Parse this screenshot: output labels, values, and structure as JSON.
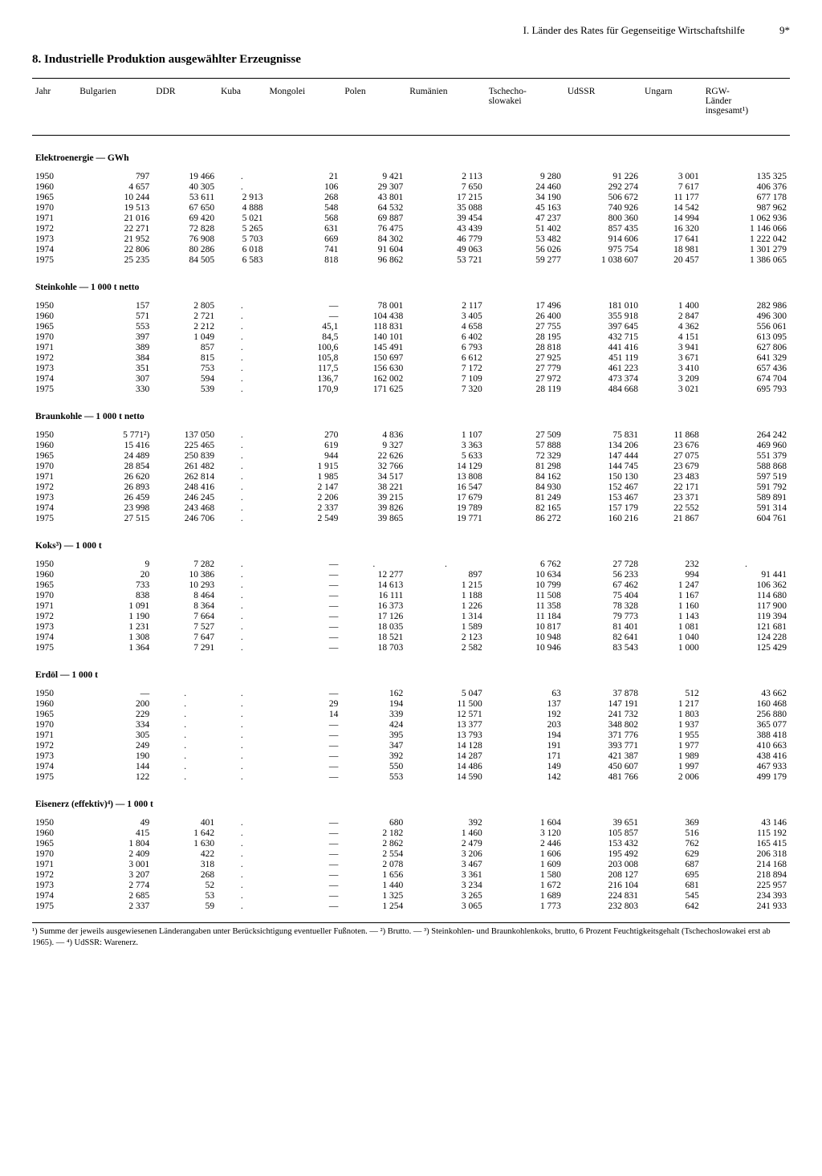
{
  "header": {
    "chapter": "I. Länder des Rates für Gegenseitige Wirtschaftshilfe",
    "pageNumber": "9*"
  },
  "title": "8. Industrielle Produktion ausgewählter Erzeugnisse",
  "columns": [
    "Jahr",
    "Bulgarien",
    "DDR",
    "Kuba",
    "Mongolei",
    "Polen",
    "Rumänien",
    "Tschecho-\nslowakei",
    "UdSSR",
    "Ungarn",
    "RGW-\nLänder\ninsgesamt¹)"
  ],
  "sections": [
    {
      "title": "Elektroenergie — GWh",
      "rows": [
        [
          "1950",
          "797",
          "19 466",
          ".",
          "21",
          "9 421",
          "2 113",
          "9 280",
          "91 226",
          "3 001",
          "135 325"
        ],
        [
          "1960",
          "4 657",
          "40 305",
          ".",
          "106",
          "29 307",
          "7 650",
          "24 460",
          "292 274",
          "7 617",
          "406 376"
        ],
        [
          "1965",
          "10 244",
          "53 611",
          "2 913",
          "268",
          "43 801",
          "17 215",
          "34 190",
          "506 672",
          "11 177",
          "677 178"
        ],
        [
          "1970",
          "19 513",
          "67 650",
          "4 888",
          "548",
          "64 532",
          "35 088",
          "45 163",
          "740 926",
          "14 542",
          "987 962"
        ],
        [
          "1971",
          "21 016",
          "69 420",
          "5 021",
          "568",
          "69 887",
          "39 454",
          "47 237",
          "800 360",
          "14 994",
          "1 062 936"
        ],
        [
          "1972",
          "22 271",
          "72 828",
          "5 265",
          "631",
          "76 475",
          "43 439",
          "51 402",
          "857 435",
          "16 320",
          "1 146 066"
        ],
        [
          "1973",
          "21 952",
          "76 908",
          "5 703",
          "669",
          "84 302",
          "46 779",
          "53 482",
          "914 606",
          "17 641",
          "1 222 042"
        ],
        [
          "1974",
          "22 806",
          "80 286",
          "6 018",
          "741",
          "91 604",
          "49 063",
          "56 026",
          "975 754",
          "18 981",
          "1 301 279"
        ],
        [
          "1975",
          "25 235",
          "84 505",
          "6 583",
          "818",
          "96 862",
          "53 721",
          "59 277",
          "1 038 607",
          "20 457",
          "1 386 065"
        ]
      ]
    },
    {
      "title": "Steinkohle — 1 000 t netto",
      "rows": [
        [
          "1950",
          "157",
          "2 805",
          ".",
          "—",
          "78 001",
          "2 117",
          "17 496",
          "181 010",
          "1 400",
          "282 986"
        ],
        [
          "1960",
          "571",
          "2 721",
          ".",
          "—",
          "104 438",
          "3 405",
          "26 400",
          "355 918",
          "2 847",
          "496 300"
        ],
        [
          "1965",
          "553",
          "2 212",
          ".",
          "45,1",
          "118 831",
          "4 658",
          "27 755",
          "397 645",
          "4 362",
          "556 061"
        ],
        [
          "1970",
          "397",
          "1 049",
          ".",
          "84,5",
          "140 101",
          "6 402",
          "28 195",
          "432 715",
          "4 151",
          "613 095"
        ],
        [
          "1971",
          "389",
          "857",
          ".",
          "100,6",
          "145 491",
          "6 793",
          "28 818",
          "441 416",
          "3 941",
          "627 806"
        ],
        [
          "1972",
          "384",
          "815",
          ".",
          "105,8",
          "150 697",
          "6 612",
          "27 925",
          "451 119",
          "3 671",
          "641 329"
        ],
        [
          "1973",
          "351",
          "753",
          ".",
          "117,5",
          "156 630",
          "7 172",
          "27 779",
          "461 223",
          "3 410",
          "657 436"
        ],
        [
          "1974",
          "307",
          "594",
          ".",
          "136,7",
          "162 002",
          "7 109",
          "27 972",
          "473 374",
          "3 209",
          "674 704"
        ],
        [
          "1975",
          "330",
          "539",
          ".",
          "170,9",
          "171 625",
          "7 320",
          "28 119",
          "484 668",
          "3 021",
          "695 793"
        ]
      ]
    },
    {
      "title": "Braunkohle — 1 000 t netto",
      "rows": [
        [
          "1950",
          "5 771²)",
          "137 050",
          ".",
          "270",
          "4 836",
          "1 107",
          "27 509",
          "75 831",
          "11 868",
          "264 242"
        ],
        [
          "1960",
          "15 416",
          "225 465",
          ".",
          "619",
          "9 327",
          "3 363",
          "57 888",
          "134 206",
          "23 676",
          "469 960"
        ],
        [
          "1965",
          "24 489",
          "250 839",
          ".",
          "944",
          "22 626",
          "5 633",
          "72 329",
          "147 444",
          "27 075",
          "551 379"
        ],
        [
          "1970",
          "28 854",
          "261 482",
          ".",
          "1 915",
          "32 766",
          "14 129",
          "81 298",
          "144 745",
          "23 679",
          "588 868"
        ],
        [
          "1971",
          "26 620",
          "262 814",
          ".",
          "1 985",
          "34 517",
          "13 808",
          "84 162",
          "150 130",
          "23 483",
          "597 519"
        ],
        [
          "1972",
          "26 893",
          "248 416",
          ".",
          "2 147",
          "38 221",
          "16 547",
          "84 930",
          "152 467",
          "22 171",
          "591 792"
        ],
        [
          "1973",
          "26 459",
          "246 245",
          ".",
          "2 206",
          "39 215",
          "17 679",
          "81 249",
          "153 467",
          "23 371",
          "589 891"
        ],
        [
          "1974",
          "23 998",
          "243 468",
          ".",
          "2 337",
          "39 826",
          "19 789",
          "82 165",
          "157 179",
          "22 552",
          "591 314"
        ],
        [
          "1975",
          "27 515",
          "246 706",
          ".",
          "2 549",
          "39 865",
          "19 771",
          "86 272",
          "160 216",
          "21 867",
          "604 761"
        ]
      ]
    },
    {
      "title": "Koks³) — 1 000 t",
      "rows": [
        [
          "1950",
          "9",
          "7 282",
          ".",
          "—",
          ".",
          ".",
          "6 762",
          "27 728",
          "232",
          "."
        ],
        [
          "1960",
          "20",
          "10 386",
          ".",
          "—",
          "12 277",
          "897",
          "10 634",
          "56 233",
          "994",
          "91 441"
        ],
        [
          "1965",
          "733",
          "10 293",
          ".",
          "—",
          "14 613",
          "1 215",
          "10 799",
          "67 462",
          "1 247",
          "106 362"
        ],
        [
          "1970",
          "838",
          "8 464",
          ".",
          "—",
          "16 111",
          "1 188",
          "11 508",
          "75 404",
          "1 167",
          "114 680"
        ],
        [
          "1971",
          "1 091",
          "8 364",
          ".",
          "—",
          "16 373",
          "1 226",
          "11 358",
          "78 328",
          "1 160",
          "117 900"
        ],
        [
          "1972",
          "1 190",
          "7 664",
          ".",
          "—",
          "17 126",
          "1 314",
          "11 184",
          "79 773",
          "1 143",
          "119 394"
        ],
        [
          "1973",
          "1 231",
          "7 527",
          ".",
          "—",
          "18 035",
          "1 589",
          "10 817",
          "81 401",
          "1 081",
          "121 681"
        ],
        [
          "1974",
          "1 308",
          "7 647",
          ".",
          "—",
          "18 521",
          "2 123",
          "10 948",
          "82 641",
          "1 040",
          "124 228"
        ],
        [
          "1975",
          "1 364",
          "7 291",
          ".",
          "—",
          "18 703",
          "2 582",
          "10 946",
          "83 543",
          "1 000",
          "125 429"
        ]
      ]
    },
    {
      "title": "Erdöl — 1 000 t",
      "rows": [
        [
          "1950",
          "—",
          ".",
          ".",
          "—",
          "162",
          "5 047",
          "63",
          "37 878",
          "512",
          "43 662"
        ],
        [
          "1960",
          "200",
          ".",
          ".",
          "29",
          "194",
          "11 500",
          "137",
          "147 191",
          "1 217",
          "160 468"
        ],
        [
          "1965",
          "229",
          ".",
          ".",
          "14",
          "339",
          "12 571",
          "192",
          "241 732",
          "1 803",
          "256 880"
        ],
        [
          "1970",
          "334",
          ".",
          ".",
          "—",
          "424",
          "13 377",
          "203",
          "348 802",
          "1 937",
          "365 077"
        ],
        [
          "1971",
          "305",
          ".",
          ".",
          "—",
          "395",
          "13 793",
          "194",
          "371 776",
          "1 955",
          "388 418"
        ],
        [
          "1972",
          "249",
          ".",
          ".",
          "—",
          "347",
          "14 128",
          "191",
          "393 771",
          "1 977",
          "410 663"
        ],
        [
          "1973",
          "190",
          ".",
          ".",
          "—",
          "392",
          "14 287",
          "171",
          "421 387",
          "1 989",
          "438 416"
        ],
        [
          "1974",
          "144",
          ".",
          ".",
          "—",
          "550",
          "14 486",
          "149",
          "450 607",
          "1 997",
          "467 933"
        ],
        [
          "1975",
          "122",
          ".",
          ".",
          "—",
          "553",
          "14 590",
          "142",
          "481 766",
          "2 006",
          "499 179"
        ]
      ]
    },
    {
      "title": "Eisenerz (effektiv)⁴) — 1 000 t",
      "rows": [
        [
          "1950",
          "49",
          "401",
          ".",
          "—",
          "680",
          "392",
          "1 604",
          "39 651",
          "369",
          "43 146"
        ],
        [
          "1960",
          "415",
          "1 642",
          ".",
          "—",
          "2 182",
          "1 460",
          "3 120",
          "105 857",
          "516",
          "115 192"
        ],
        [
          "1965",
          "1 804",
          "1 630",
          ".",
          "—",
          "2 862",
          "2 479",
          "2 446",
          "153 432",
          "762",
          "165 415"
        ],
        [
          "1970",
          "2 409",
          "422",
          ".",
          "—",
          "2 554",
          "3 206",
          "1 606",
          "195 492",
          "629",
          "206 318"
        ],
        [
          "1971",
          "3 001",
          "318",
          ".",
          "—",
          "2 078",
          "3 467",
          "1 609",
          "203 008",
          "687",
          "214 168"
        ],
        [
          "1972",
          "3 207",
          "268",
          ".",
          "—",
          "1 656",
          "3 361",
          "1 580",
          "208 127",
          "695",
          "218 894"
        ],
        [
          "1973",
          "2 774",
          "52",
          ".",
          "—",
          "1 440",
          "3 234",
          "1 672",
          "216 104",
          "681",
          "225 957"
        ],
        [
          "1974",
          "2 685",
          "53",
          ".",
          "—",
          "1 325",
          "3 265",
          "1 689",
          "224 831",
          "545",
          "234 393"
        ],
        [
          "1975",
          "2 337",
          "59",
          ".",
          "—",
          "1 254",
          "3 065",
          "1 773",
          "232 803",
          "642",
          "241 933"
        ]
      ]
    }
  ],
  "footnotes": "¹) Summe der jeweils ausgewiesenen Länderangaben unter Berücksichtigung eventueller Fußnoten. — ²) Brutto. — ³) Steinkohlen- und Braunkohlenkoks, brutto, 6 Prozent Feuchtigkeitsgehalt (Tschechoslowakei erst ab 1965). — ⁴) UdSSR: Warenerz."
}
